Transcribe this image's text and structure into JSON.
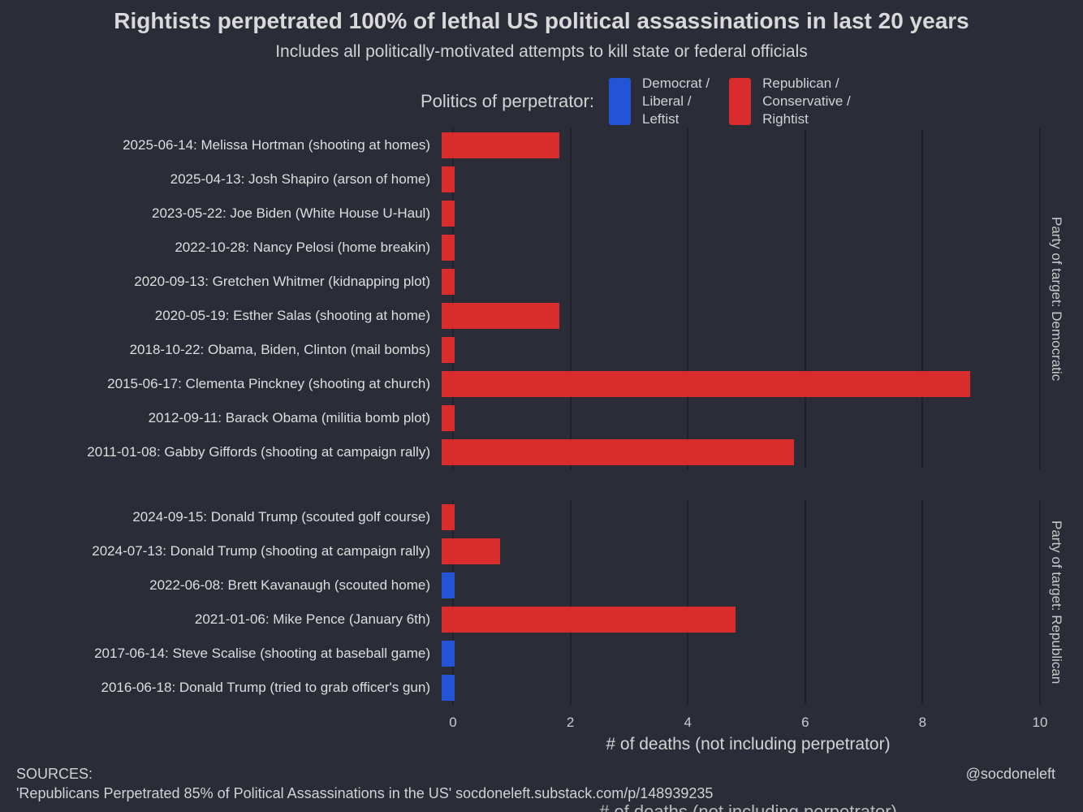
{
  "header": {
    "title": "Rightists perpetrated 100% of lethal US political assassinations in last 20 years",
    "subtitle": "Includes all politically-motivated attempts to kill state or federal officials"
  },
  "legend": {
    "label": "Politics of perpetrator:",
    "items": [
      {
        "key": "democrat",
        "label": "Democrat /\nLiberal /\nLeftist",
        "color": "#2553d6"
      },
      {
        "key": "republican",
        "label": "Republican /\nConservative /\nRightist",
        "color": "#d92c2c"
      }
    ]
  },
  "chart_data": {
    "type": "bar",
    "orientation": "horizontal",
    "title": "Rightists perpetrated 100% of lethal US political assassinations in last 20 years",
    "subtitle": "Includes all politically-motivated attempts to kill state or federal officials",
    "xlabel": "# of deaths (not including perpetrator)",
    "xlim": [
      0,
      10
    ],
    "xticks": [
      0,
      2,
      4,
      6,
      8,
      10
    ],
    "grid": "vertical-major",
    "legend_position": "top",
    "colors": {
      "democrat": "#2553d6",
      "republican": "#d92c2c"
    },
    "facets": [
      {
        "strip_label": "Party of target: Democratic",
        "rows": [
          {
            "label": "2025-06-14: Melissa Hortman (shooting at homes)",
            "deaths": 2,
            "perpetrator": "republican"
          },
          {
            "label": "2025-04-13: Josh Shapiro (arson of home)",
            "deaths": 0,
            "perpetrator": "republican"
          },
          {
            "label": "2023-05-22: Joe Biden (White House U-Haul)",
            "deaths": 0,
            "perpetrator": "republican"
          },
          {
            "label": "2022-10-28: Nancy Pelosi (home breakin)",
            "deaths": 0,
            "perpetrator": "republican"
          },
          {
            "label": "2020-09-13: Gretchen Whitmer (kidnapping plot)",
            "deaths": 0,
            "perpetrator": "republican"
          },
          {
            "label": "2020-05-19: Esther Salas (shooting at home)",
            "deaths": 2,
            "perpetrator": "republican"
          },
          {
            "label": "2018-10-22: Obama, Biden, Clinton (mail bombs)",
            "deaths": 0,
            "perpetrator": "republican"
          },
          {
            "label": "2015-06-17: Clementa Pinckney (shooting at church)",
            "deaths": 9,
            "perpetrator": "republican"
          },
          {
            "label": "2012-09-11: Barack Obama (militia bomb plot)",
            "deaths": 0,
            "perpetrator": "republican"
          },
          {
            "label": "2011-01-08: Gabby Giffords (shooting at campaign rally)",
            "deaths": 6,
            "perpetrator": "republican"
          }
        ]
      },
      {
        "strip_label": "Party of target: Republican",
        "rows": [
          {
            "label": "2024-09-15: Donald Trump (scouted golf course)",
            "deaths": 0,
            "perpetrator": "republican"
          },
          {
            "label": "2024-07-13: Donald Trump (shooting at campaign rally)",
            "deaths": 1,
            "perpetrator": "republican"
          },
          {
            "label": "2022-06-08: Brett Kavanaugh (scouted home)",
            "deaths": 0,
            "perpetrator": "democrat"
          },
          {
            "label": "2021-01-06: Mike Pence (January 6th)",
            "deaths": 5,
            "perpetrator": "republican"
          },
          {
            "label": "2017-06-14: Steve Scalise (shooting at baseball game)",
            "deaths": 0,
            "perpetrator": "democrat"
          },
          {
            "label": "2016-06-18: Donald Trump (tried to grab officer's gun)",
            "deaths": 0,
            "perpetrator": "democrat"
          }
        ]
      }
    ]
  },
  "footer": {
    "sources_label": "SOURCES:",
    "source_line": "'Republicans Perpetrated 85% of Political Assassinations in the US' socdoneleft.substack.com/p/148939235",
    "handle": "@socdoneleft"
  }
}
